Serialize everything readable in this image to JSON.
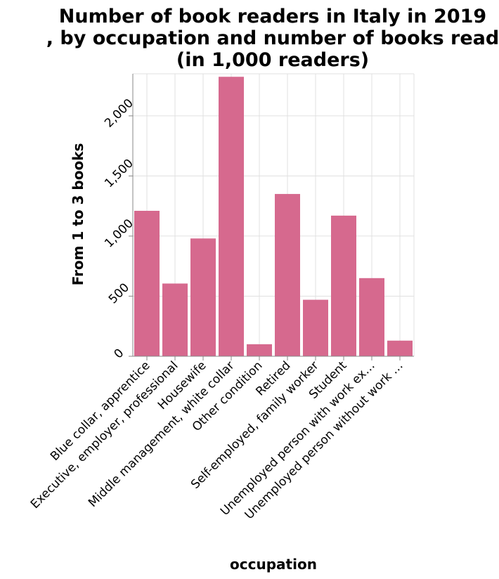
{
  "chart_data": {
    "type": "bar",
    "title": [
      "Number of book readers in Italy in 2019",
      ", by occupation and number of books read",
      "(in 1,000 readers)"
    ],
    "xlabel": "occupation",
    "ylabel": "From 1 to 3 books",
    "ylim": [
      0,
      2350
    ],
    "yticks": [
      0,
      500,
      1000,
      1500,
      2000
    ],
    "ytick_labels": [
      "0",
      "500",
      "1,000",
      "1,500",
      "2,000"
    ],
    "grid": true,
    "bar_color": "#d6698e",
    "categories": [
      "Blue collar, apprentice",
      "Executive, employer, professional",
      "Housewife",
      "Middle management, white collar",
      "Other condition",
      "Retired",
      "Self-employed, family worker",
      "Student",
      "Unemployed person with work ex…",
      "Unemployed person without work …"
    ],
    "values": [
      1210,
      605,
      980,
      2325,
      100,
      1350,
      470,
      1170,
      650,
      130
    ]
  }
}
